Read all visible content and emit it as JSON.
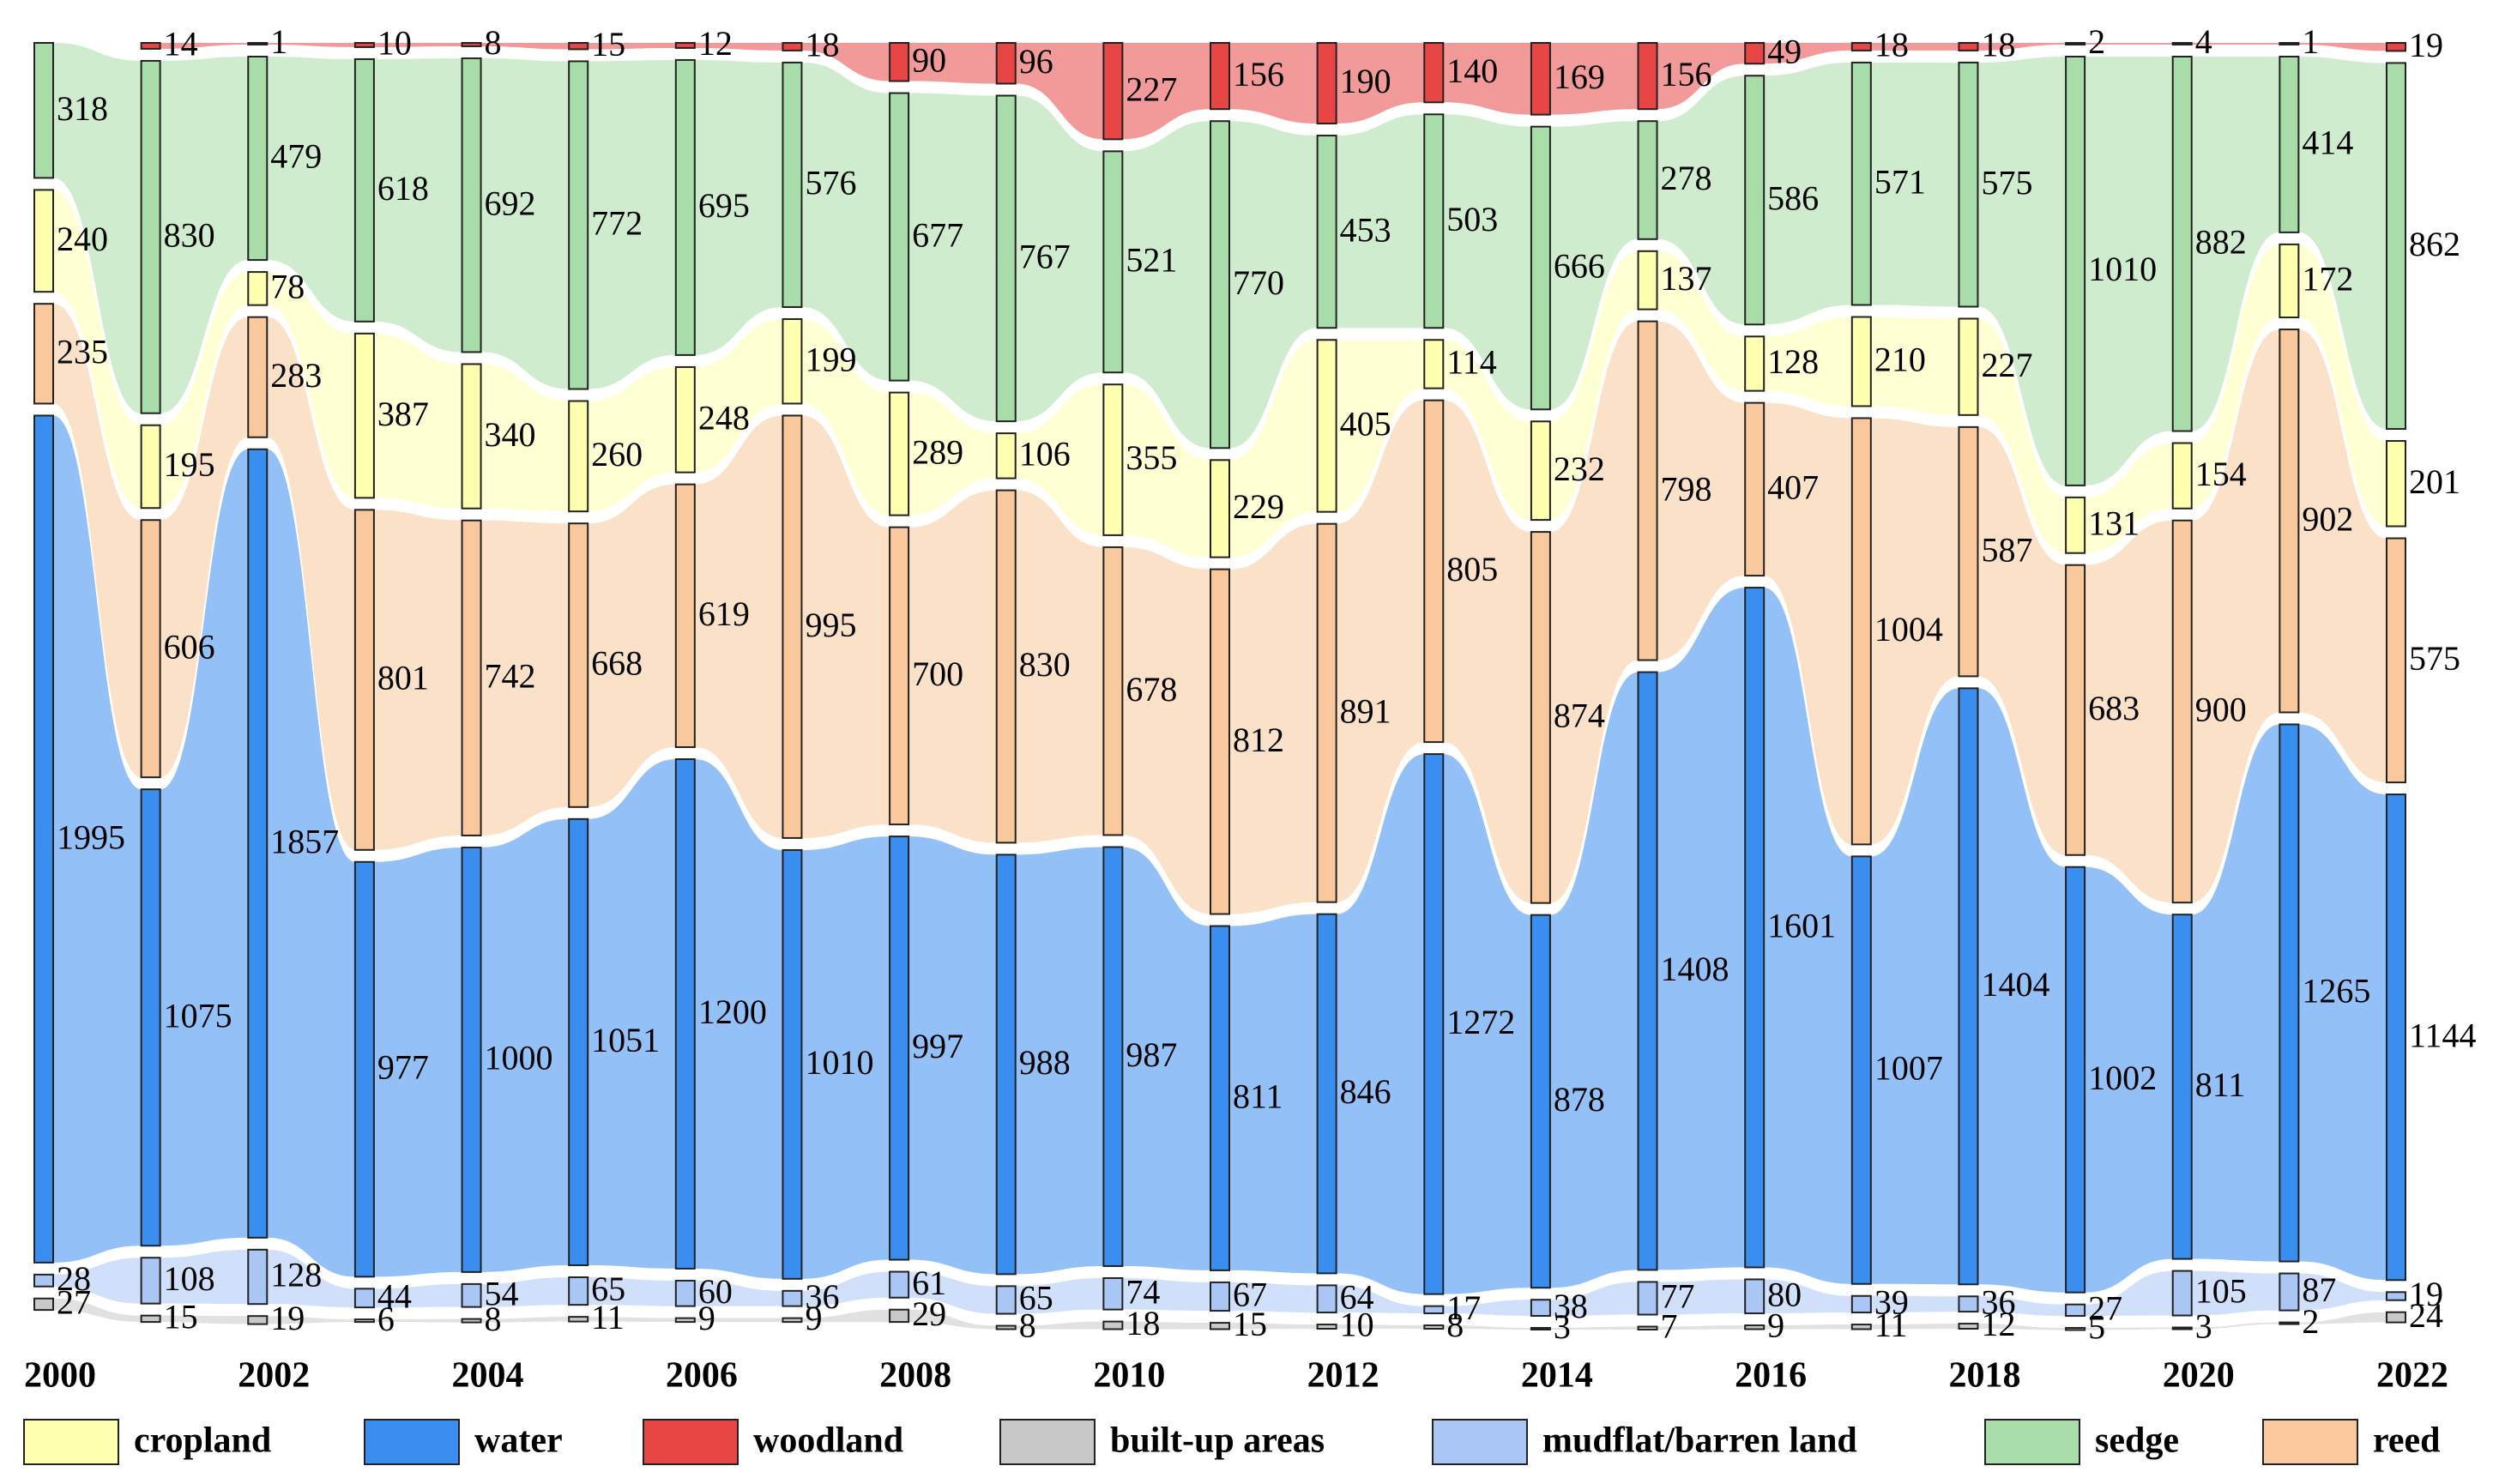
{
  "chart_data": {
    "type": "sankey",
    "categories": [
      "2000",
      null,
      "2002",
      null,
      "2004",
      null,
      "2006",
      null,
      "2008",
      null,
      "2010",
      null,
      "2012",
      null,
      "2014",
      null,
      "2016",
      null,
      "2018",
      null,
      "2020",
      null,
      "2022"
    ],
    "stack_order": [
      "woodland",
      "sedge",
      "cropland",
      "reed",
      "water",
      "mudflat/barren land",
      "built-up areas"
    ],
    "series": [
      {
        "name": "cropland",
        "color": "#ffffb0",
        "values": [
          240,
          195,
          78,
          387,
          340,
          260,
          248,
          199,
          289,
          106,
          355,
          229,
          405,
          114,
          232,
          137,
          128,
          210,
          227,
          131,
          154,
          172,
          201
        ]
      },
      {
        "name": "water",
        "color": "#3a8ef0",
        "values": [
          1995,
          1075,
          1857,
          977,
          1000,
          1051,
          1200,
          1010,
          997,
          988,
          987,
          811,
          846,
          1272,
          878,
          1408,
          1601,
          1007,
          1404,
          1002,
          811,
          1265,
          1144
        ]
      },
      {
        "name": "woodland",
        "color": "#e84545",
        "values": [
          null,
          14,
          1,
          10,
          8,
          15,
          12,
          18,
          90,
          96,
          227,
          156,
          190,
          140,
          169,
          156,
          49,
          18,
          18,
          2,
          4,
          1,
          19
        ]
      },
      {
        "name": "built-up areas",
        "color": "#c8c8c8",
        "values": [
          27,
          15,
          19,
          6,
          8,
          11,
          9,
          9,
          29,
          8,
          18,
          15,
          10,
          8,
          3,
          7,
          9,
          11,
          12,
          5,
          3,
          2,
          24
        ]
      },
      {
        "name": "mudflat/barren land",
        "color": "#aac6f5",
        "values": [
          28,
          108,
          128,
          44,
          54,
          65,
          60,
          36,
          61,
          65,
          74,
          67,
          64,
          17,
          38,
          77,
          80,
          39,
          36,
          27,
          105,
          87,
          19
        ]
      },
      {
        "name": "sedge",
        "color": "#a8dca8",
        "values": [
          318,
          830,
          479,
          618,
          692,
          772,
          695,
          576,
          677,
          767,
          521,
          770,
          453,
          503,
          666,
          278,
          586,
          571,
          575,
          1010,
          882,
          414,
          862
        ]
      },
      {
        "name": "reed",
        "color": "#f9c89c",
        "values": [
          235,
          606,
          283,
          801,
          742,
          668,
          619,
          995,
          700,
          830,
          678,
          812,
          891,
          805,
          874,
          798,
          407,
          1004,
          587,
          683,
          900,
          902,
          575
        ]
      }
    ]
  }
}
